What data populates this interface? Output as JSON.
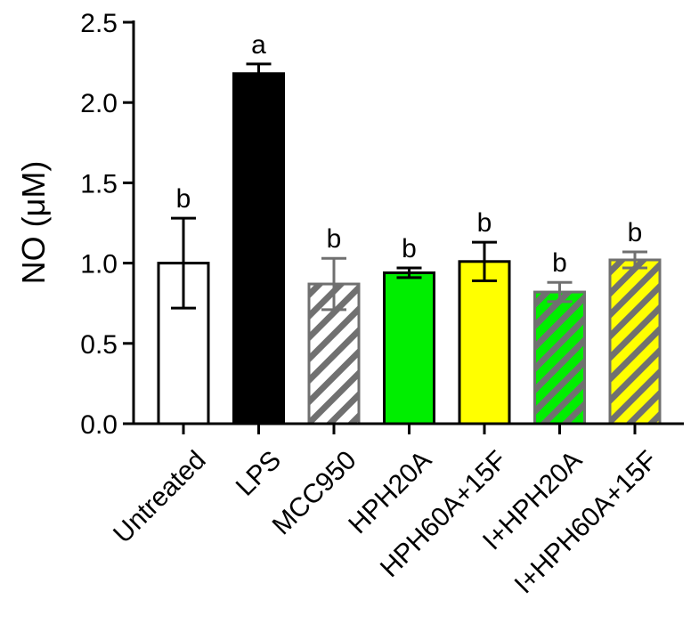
{
  "chart_data": {
    "type": "bar",
    "title": "",
    "xlabel": "",
    "ylabel": "NO (μM)",
    "ylim": [
      0,
      2.5
    ],
    "yticks": [
      0.0,
      0.5,
      1.0,
      1.5,
      2.0,
      2.5
    ],
    "ytick_labels": [
      "0.0",
      "0.5",
      "1.0",
      "1.5",
      "2.0",
      "2.5"
    ],
    "grid": false,
    "legend": "none",
    "categories": [
      "Untreated",
      "LPS",
      "MCC950",
      "HPH20A",
      "HPH60A+15F",
      "I+HPH20A",
      "I+HPH60A+15F"
    ],
    "values": [
      1.0,
      2.18,
      0.87,
      0.94,
      1.01,
      0.82,
      1.02
    ],
    "errors": [
      0.28,
      0.06,
      0.16,
      0.03,
      0.12,
      0.06,
      0.05
    ],
    "significance_letters": [
      "b",
      "a",
      "b",
      "b",
      "b",
      "b",
      "b"
    ],
    "styles": [
      {
        "fill": "#ffffff",
        "stroke": "#000000",
        "hatch": null
      },
      {
        "fill": "#000000",
        "stroke": "#000000",
        "hatch": null
      },
      {
        "fill": "#ffffff",
        "stroke": "#707070",
        "hatch": "#707070"
      },
      {
        "fill": "#00ee00",
        "stroke": "#000000",
        "hatch": null
      },
      {
        "fill": "#ffff00",
        "stroke": "#000000",
        "hatch": null
      },
      {
        "fill": "#00ee00",
        "stroke": "#707070",
        "hatch": "#707070"
      },
      {
        "fill": "#ffff00",
        "stroke": "#707070",
        "hatch": "#707070"
      }
    ]
  }
}
